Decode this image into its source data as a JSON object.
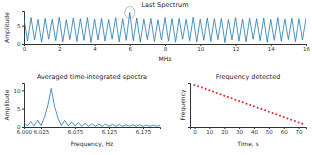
{
  "chart_data": [
    {
      "type": "line",
      "title": "Last Spectrum",
      "x_label": "MHz",
      "y_label": "Amplitude",
      "color": "#1f77b4",
      "x": [
        0,
        0.2,
        0.4,
        0.6,
        0.8,
        1,
        1.2,
        1.4,
        1.6,
        1.8,
        2,
        2.2,
        2.4,
        2.6,
        2.8,
        3,
        3.2,
        3.4,
        3.6,
        3.8,
        4,
        4.2,
        4.4,
        4.6,
        4.8,
        5,
        5.2,
        5.4,
        5.6,
        5.8,
        6,
        6.2,
        6.4,
        6.6,
        6.8,
        7,
        7.2,
        7.4,
        7.6,
        7.8,
        8,
        8.2,
        8.4,
        8.6,
        8.8,
        9,
        9.2,
        9.4,
        9.6,
        9.8,
        10,
        10.2,
        10.4,
        10.6,
        10.8,
        11,
        11.2,
        11.4,
        11.6,
        11.8,
        12,
        12.2,
        12.4,
        12.6,
        12.8,
        13,
        13.2,
        13.4,
        13.6,
        13.8,
        14,
        14.2,
        14.4,
        14.6,
        14.8,
        15,
        15.2,
        15.4,
        15.6,
        15.8,
        16
      ],
      "values": [
        6.9,
        0.8,
        7.2,
        1.1,
        6.7,
        0.5,
        7.0,
        1.3,
        6.8,
        0.9,
        7.3,
        0.6,
        6.6,
        1.2,
        7.1,
        0.7,
        6.9,
        1.0,
        7.2,
        0.4,
        6.8,
        1.1,
        7.0,
        0.8,
        6.7,
        1.3,
        7.2,
        0.6,
        6.9,
        1.0,
        8.6,
        0.9,
        7.1,
        0.5,
        6.8,
        1.2,
        7.0,
        0.7,
        6.6,
        1.1,
        7.2,
        0.8,
        6.9,
        0.5,
        7.0,
        1.3,
        6.7,
        0.9,
        7.3,
        0.6,
        6.8,
        1.0,
        7.1,
        0.7,
        6.9,
        1.2,
        7.0,
        0.4,
        6.7,
        1.1,
        7.2,
        0.8,
        6.8,
        0.6,
        7.0,
        1.3,
        6.9,
        0.9,
        7.1,
        0.5,
        6.7,
        1.0,
        7.2,
        0.8,
        6.8,
        1.2,
        7.0,
        0.6,
        6.9,
        1.1,
        7.0
      ],
      "xlim": [
        0,
        16
      ],
      "xticks": [
        0,
        2,
        4,
        6,
        8,
        10,
        12,
        14,
        16
      ],
      "ylim": [
        0,
        9
      ],
      "yticks": [
        0,
        5
      ]
    },
    {
      "type": "line",
      "title": "Averaged time-integrated spectra",
      "x_label": "Frequency, Hz",
      "y_label": "Amplitude",
      "color": "#1f77b4",
      "x": [
        6.0,
        6.005,
        6.01,
        6.015,
        6.02,
        6.025,
        6.03,
        6.035,
        6.04,
        6.045,
        6.05,
        6.055,
        6.06,
        6.065,
        6.07,
        6.075,
        6.08,
        6.085,
        6.09,
        6.095,
        6.1,
        6.105,
        6.11,
        6.115,
        6.12,
        6.125,
        6.13,
        6.135,
        6.14,
        6.145,
        6.15,
        6.155,
        6.16,
        6.165,
        6.17,
        6.175,
        6.18,
        6.185,
        6.19,
        6.195,
        6.2
      ],
      "values": [
        1.2,
        0.3,
        1.5,
        0.3,
        1.9,
        0.4,
        2.6,
        5.8,
        10.5,
        5.6,
        2.4,
        0.4,
        1.8,
        0.3,
        1.4,
        0.3,
        1.2,
        0.2,
        1.0,
        0.2,
        0.9,
        0.2,
        0.8,
        0.2,
        0.8,
        0.2,
        0.7,
        0.2,
        0.7,
        0.2,
        0.6,
        0.2,
        0.6,
        0.2,
        0.6,
        0.2,
        0.5,
        0.2,
        0.5,
        0.2,
        0.5
      ],
      "xlim": [
        6.0,
        6.2
      ],
      "xticks": [
        {
          "value": 6.0,
          "label": "6.000"
        },
        {
          "value": 6.025,
          "label": "6.025"
        },
        {
          "value": 6.075,
          "label": "6.075"
        },
        {
          "value": 6.125,
          "label": "6.125"
        },
        {
          "value": 6.175,
          "label": "6.175"
        }
      ],
      "ylim": [
        0,
        12
      ],
      "yticks": [
        0,
        5,
        10
      ]
    },
    {
      "type": "scatter",
      "title": "Frequency detected",
      "x_label": "Time, s",
      "y_label": "Frequency",
      "color": "#d62728",
      "marker": "circle",
      "x": [
        0,
        2.5,
        5,
        7.5,
        10,
        12.5,
        15,
        17.5,
        20,
        22.5,
        25,
        27.5,
        30,
        32.5,
        35,
        37.5,
        40,
        42.5,
        45,
        47.5,
        50,
        52.5,
        55,
        57.5,
        60,
        62.5,
        65,
        67.5,
        70,
        72.5
      ],
      "values": [
        6.065,
        6.0615,
        6.058,
        6.0545,
        6.051,
        6.0475,
        6.044,
        6.0405,
        6.037,
        6.0335,
        6.03,
        6.0265,
        6.023,
        6.0195,
        6.016,
        6.0125,
        6.009,
        6.0055,
        6.002,
        5.9985,
        5.995,
        5.9915,
        5.988,
        5.9845,
        5.981,
        5.9775,
        5.974,
        5.9705,
        5.967,
        5.9635
      ],
      "xlim": [
        -3,
        75
      ],
      "xticks": [
        0,
        10,
        20,
        30,
        40,
        50,
        60,
        70
      ],
      "ylim": [
        5.955,
        6.07
      ],
      "tick_labels": "x"
    }
  ]
}
